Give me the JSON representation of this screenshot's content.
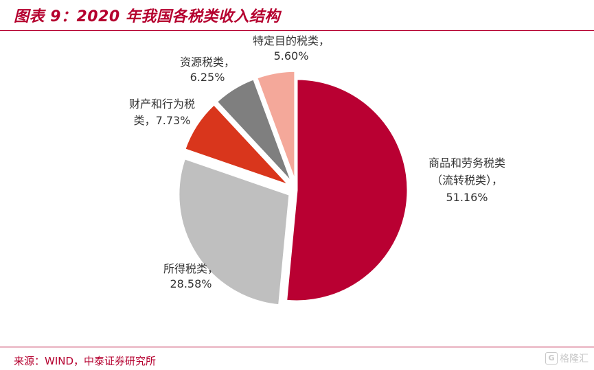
{
  "header": {
    "title": "图表 9：2020 年我国各税类收入结构"
  },
  "footer": {
    "source": "来源：WIND，中泰证券研究所"
  },
  "watermark": {
    "icon": "g-logo-icon",
    "text": "格隆汇"
  },
  "chart_data": {
    "type": "pie",
    "title": "图表 9：2020 年我国各税类收入结构",
    "unit": "%",
    "slices": [
      {
        "name": "商品和劳务税类（流转税类）",
        "value": 51.16,
        "label_lines": [
          "商品和劳务税类",
          "（流转税类），",
          "51.16%"
        ],
        "color": "#b90032",
        "explode": 0
      },
      {
        "name": "所得税类",
        "value": 28.58,
        "label_lines": [
          "所得税类，",
          "28.58%"
        ],
        "color": "#bfbfbf",
        "explode": 12
      },
      {
        "name": "财产和行为税类",
        "value": 7.73,
        "label_lines": [
          "财产和行为税",
          "类，7.73%"
        ],
        "color": "#d9361c",
        "explode": 12
      },
      {
        "name": "资源税类",
        "value": 6.25,
        "label_lines": [
          "资源税类，",
          "6.25%"
        ],
        "color": "#7f7f7f",
        "explode": 12
      },
      {
        "name": "特定目的税类",
        "value": 5.6,
        "label_lines": [
          "特定目的税类，",
          "5.60%"
        ],
        "color": "#f4a89a",
        "explode": 12
      }
    ]
  }
}
